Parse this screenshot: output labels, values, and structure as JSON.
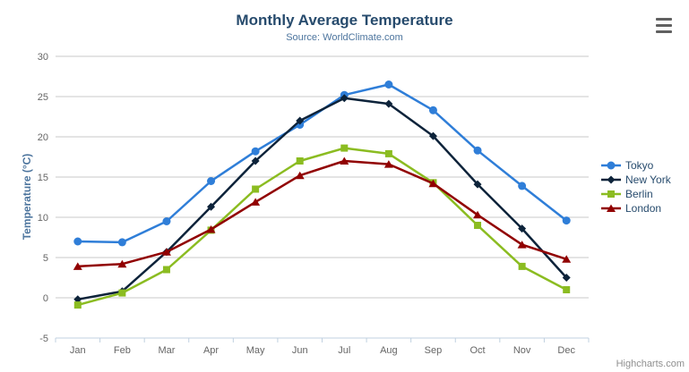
{
  "header": {
    "title": "Monthly Average Temperature",
    "subtitle": "Source: WorldClimate.com"
  },
  "toolbar": {
    "menu_icon": "hamburger-menu-icon"
  },
  "chart_data": {
    "type": "line",
    "title": "Monthly Average Temperature",
    "subtitle": "Source: WorldClimate.com",
    "categories": [
      "Jan",
      "Feb",
      "Mar",
      "Apr",
      "May",
      "Jun",
      "Jul",
      "Aug",
      "Sep",
      "Oct",
      "Nov",
      "Dec"
    ],
    "series": [
      {
        "name": "Tokyo",
        "color": "#2f7ed8",
        "marker": "circle",
        "values": [
          7.0,
          6.9,
          9.5,
          14.5,
          18.2,
          21.5,
          25.2,
          26.5,
          23.3,
          18.3,
          13.9,
          9.6
        ]
      },
      {
        "name": "New York",
        "color": "#0d233a",
        "marker": "diamond",
        "values": [
          -0.2,
          0.8,
          5.7,
          11.3,
          17.0,
          22.0,
          24.8,
          24.1,
          20.1,
          14.1,
          8.6,
          2.5
        ]
      },
      {
        "name": "Berlin",
        "color": "#8bbc21",
        "marker": "square",
        "values": [
          -0.9,
          0.6,
          3.5,
          8.4,
          13.5,
          17.0,
          18.6,
          17.9,
          14.3,
          9.0,
          3.9,
          1.0
        ]
      },
      {
        "name": "London",
        "color": "#910000",
        "marker": "triangle",
        "values": [
          3.9,
          4.2,
          5.7,
          8.5,
          11.9,
          15.2,
          17.0,
          16.6,
          14.2,
          10.3,
          6.6,
          4.8
        ]
      }
    ],
    "xlabel": "",
    "ylabel": "Temperature (°C)",
    "ylim": [
      -5,
      30
    ],
    "yticks": [
      30,
      25,
      20,
      15,
      10,
      5,
      0,
      -5
    ],
    "grid": true,
    "legend_position": "right"
  },
  "credit": {
    "label": "Highcharts.com"
  },
  "colors": {
    "title_text": "#274b6d",
    "subtitle_text": "#4d759e",
    "axis_label": "#666666",
    "gridline": "#c8c8c8",
    "axis_line": "#c0d0e0",
    "legend_text": "#274b6d",
    "credit_text": "#8f8f8f"
  }
}
